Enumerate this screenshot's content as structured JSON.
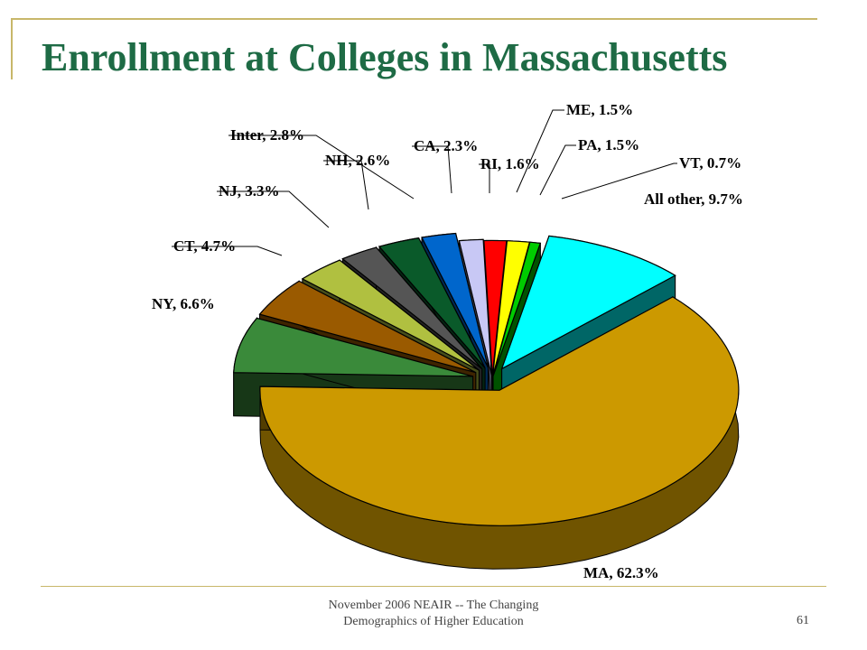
{
  "slide": {
    "title": "Enrollment at Colleges in Massachusetts",
    "footer_line1": "November 2006 NEAIR -- The Changing",
    "footer_line2": "Demographics of Higher Education",
    "page_number": "61",
    "title_color": "#1e6b45",
    "frame_color": "#c8b76a"
  },
  "chart_data": {
    "type": "pie",
    "title": "",
    "style": "3d-exploded",
    "labels": [
      "ME, 1.5%",
      "PA, 1.5%",
      "VT, 0.7%",
      "All other, 9.7%",
      "MA, 62.3%",
      "NY, 6.6%",
      "CT, 4.7%",
      "NJ, 3.3%",
      "NH, 2.6%",
      "Inter, 2.8%",
      "CA, 2.3%",
      "RI, 1.6%"
    ],
    "categories": [
      "ME",
      "PA",
      "VT",
      "All other",
      "MA",
      "NY",
      "CT",
      "NJ",
      "NH",
      "Inter",
      "CA",
      "RI"
    ],
    "values": [
      1.5,
      1.5,
      0.7,
      9.7,
      62.3,
      6.6,
      4.7,
      3.3,
      2.6,
      2.8,
      2.3,
      1.6
    ],
    "colors": [
      "#ff0000",
      "#ffff00",
      "#00cc00",
      "#00ffff",
      "#cc9900",
      "#3a8a3a",
      "#9a5a00",
      "#b0c040",
      "#555555",
      "#0a5a2a",
      "#0066cc",
      "#c8c8f5"
    ],
    "legend": "none"
  }
}
